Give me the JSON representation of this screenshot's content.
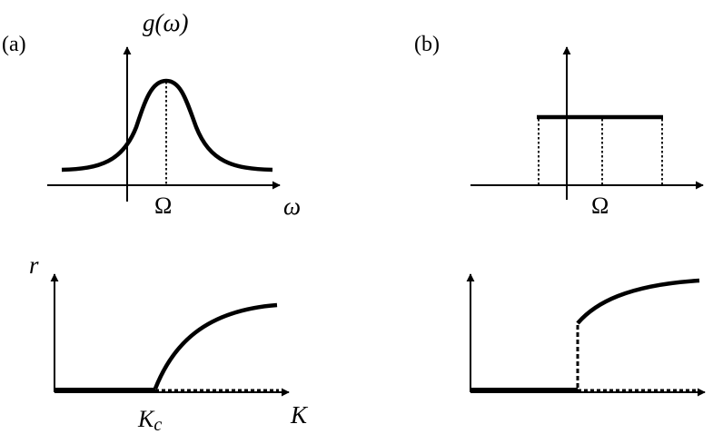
{
  "panel_a": {
    "label": "(a)",
    "y_axis_label": "g(ω)",
    "x_axis_label": "ω",
    "center_label": "Ω"
  },
  "panel_b": {
    "label": "(b)",
    "center_label": "Ω"
  },
  "bottom_left": {
    "y_axis_label": "r",
    "x_axis_label": "K",
    "critical_label_main": "K",
    "critical_label_sub": "c"
  }
}
